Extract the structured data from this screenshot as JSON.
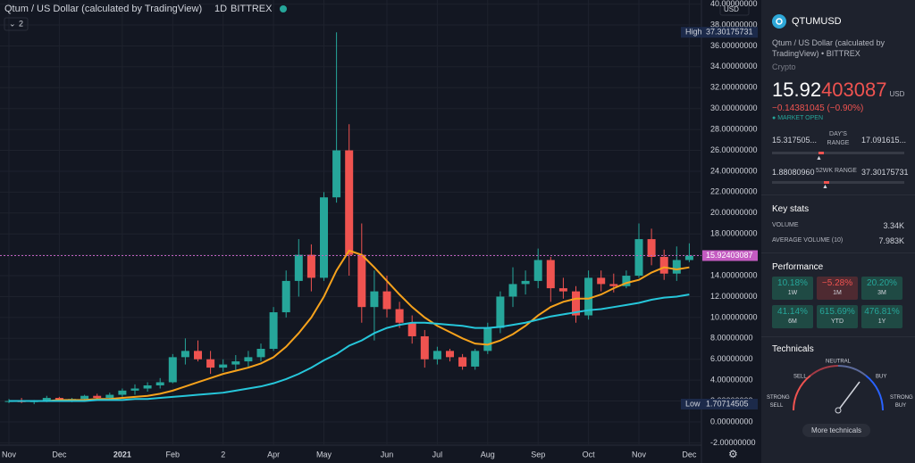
{
  "header": {
    "title": "Qtum / US Dollar (calculated by TradingView)",
    "interval": "1D",
    "exchange": "BITTREX",
    "indicators": "2",
    "currency": "USD"
  },
  "chart_data": {
    "type": "candlestick",
    "categories": [
      "Nov",
      null,
      null,
      null,
      "Dec",
      null,
      null,
      null,
      null,
      "2021",
      null,
      null,
      null,
      "Feb",
      null,
      null,
      null,
      "2",
      null,
      null,
      null,
      "Apr",
      null,
      null,
      null,
      "May",
      null,
      null,
      null,
      null,
      "Jun",
      null,
      null,
      null,
      "Jul",
      null,
      null,
      null,
      "Aug",
      null,
      null,
      null,
      "Sep",
      null,
      null,
      null,
      "Oct",
      null,
      null,
      null,
      "Nov",
      null,
      null,
      null,
      "Dec"
    ],
    "ohlc": [
      [
        2.0,
        2.2,
        1.8,
        2.0
      ],
      [
        2.0,
        2.3,
        1.8,
        1.9
      ],
      [
        1.9,
        2.1,
        1.7,
        2.0
      ],
      [
        2.0,
        2.5,
        1.9,
        2.3
      ],
      [
        2.3,
        2.4,
        2.0,
        2.1
      ],
      [
        2.1,
        2.3,
        1.9,
        2.2
      ],
      [
        2.2,
        2.6,
        2.1,
        2.5
      ],
      [
        2.5,
        2.7,
        2.2,
        2.3
      ],
      [
        2.3,
        2.8,
        2.2,
        2.6
      ],
      [
        2.6,
        3.2,
        2.4,
        3.0
      ],
      [
        3.0,
        3.6,
        2.6,
        3.2
      ],
      [
        3.2,
        3.8,
        2.9,
        3.5
      ],
      [
        3.5,
        4.2,
        3.2,
        3.8
      ],
      [
        3.8,
        6.5,
        3.7,
        6.2
      ],
      [
        6.2,
        8.0,
        5.5,
        6.8
      ],
      [
        6.8,
        7.8,
        5.8,
        6.0
      ],
      [
        6.0,
        6.8,
        4.6,
        5.2
      ],
      [
        5.2,
        6.0,
        4.8,
        5.5
      ],
      [
        5.5,
        6.4,
        5.0,
        5.8
      ],
      [
        5.8,
        6.8,
        5.3,
        6.2
      ],
      [
        6.2,
        7.5,
        5.8,
        7.0
      ],
      [
        7.0,
        11.0,
        6.8,
        10.5
      ],
      [
        10.5,
        14.5,
        10.0,
        13.5
      ],
      [
        13.5,
        17.5,
        12.0,
        16.0
      ],
      [
        16.0,
        17.0,
        12.5,
        13.8
      ],
      [
        13.8,
        22.0,
        13.5,
        21.5
      ],
      [
        21.5,
        37.3,
        21.0,
        26.0
      ],
      [
        26.0,
        28.5,
        14.0,
        16.0
      ],
      [
        16.0,
        19.0,
        9.5,
        11.0
      ],
      [
        11.0,
        14.5,
        7.8,
        12.5
      ],
      [
        12.5,
        14.0,
        10.0,
        10.8
      ],
      [
        10.8,
        11.5,
        9.0,
        9.5
      ],
      [
        9.5,
        10.2,
        7.5,
        8.2
      ],
      [
        8.2,
        8.8,
        5.2,
        6.0
      ],
      [
        6.0,
        7.2,
        5.5,
        6.8
      ],
      [
        6.8,
        7.0,
        5.8,
        6.2
      ],
      [
        6.2,
        6.5,
        5.0,
        5.3
      ],
      [
        5.3,
        7.0,
        5.0,
        6.8
      ],
      [
        6.8,
        9.5,
        6.5,
        9.0
      ],
      [
        9.0,
        12.5,
        8.5,
        12.0
      ],
      [
        12.0,
        14.8,
        11.0,
        13.2
      ],
      [
        13.2,
        14.5,
        12.2,
        13.5
      ],
      [
        13.5,
        16.6,
        12.8,
        15.5
      ],
      [
        15.5,
        15.8,
        11.5,
        12.8
      ],
      [
        12.8,
        13.8,
        11.8,
        12.5
      ],
      [
        12.5,
        13.0,
        9.5,
        10.2
      ],
      [
        10.2,
        14.5,
        9.8,
        13.8
      ],
      [
        13.8,
        14.5,
        12.5,
        13.2
      ],
      [
        13.2,
        14.2,
        12.4,
        13.0
      ],
      [
        13.0,
        14.5,
        12.8,
        14.0
      ],
      [
        14.0,
        19.0,
        13.8,
        17.5
      ],
      [
        17.5,
        18.5,
        15.0,
        15.8
      ],
      [
        15.8,
        16.5,
        13.6,
        14.2
      ],
      [
        14.2,
        16.8,
        13.5,
        15.5
      ],
      [
        15.5,
        17.1,
        15.3,
        15.92403087
      ]
    ],
    "up_color": "#26a69a",
    "down_color": "#ef5350",
    "lines": [
      {
        "color": "#f6a21c",
        "values": [
          2.0,
          2.0,
          2.0,
          2.0,
          2.1,
          2.1,
          2.1,
          2.2,
          2.2,
          2.3,
          2.4,
          2.5,
          2.7,
          3.0,
          3.4,
          3.8,
          4.2,
          4.6,
          4.9,
          5.2,
          5.6,
          6.2,
          7.2,
          8.5,
          10.0,
          12.0,
          14.5,
          16.4,
          16.0,
          14.8,
          13.5,
          12.2,
          11.0,
          10.0,
          9.2,
          8.6,
          8.0,
          7.5,
          7.4,
          7.8,
          8.4,
          9.2,
          10.2,
          11.0,
          11.5,
          11.8,
          11.8,
          12.2,
          12.8,
          13.3,
          13.6,
          14.3,
          14.8,
          14.6,
          14.8
        ]
      },
      {
        "color": "#26c6da",
        "values": [
          2.0,
          2.0,
          2.0,
          2.0,
          2.0,
          2.0,
          2.0,
          2.1,
          2.1,
          2.1,
          2.2,
          2.2,
          2.3,
          2.4,
          2.5,
          2.6,
          2.7,
          2.8,
          3.0,
          3.2,
          3.4,
          3.7,
          4.1,
          4.6,
          5.2,
          5.9,
          6.5,
          7.3,
          7.8,
          8.5,
          9.0,
          9.3,
          9.5,
          9.5,
          9.4,
          9.3,
          9.2,
          9.0,
          9.0,
          9.1,
          9.3,
          9.5,
          9.8,
          10.1,
          10.3,
          10.5,
          10.7,
          10.8,
          11.0,
          11.2,
          11.4,
          11.7,
          11.9,
          12.0,
          12.2
        ]
      }
    ],
    "ylim": [
      -2,
      40
    ],
    "yticks": [
      {
        "value": -2,
        "label": "-2.00000000"
      },
      {
        "value": 0,
        "label": "0.00000000"
      },
      {
        "value": 2,
        "label": "2.00000000"
      },
      {
        "value": 4,
        "label": "4.00000000"
      },
      {
        "value": 6,
        "label": "6.00000000"
      },
      {
        "value": 8,
        "label": "8.00000000"
      },
      {
        "value": 10,
        "label": "10.00000000"
      },
      {
        "value": 12,
        "label": "12.00000000"
      },
      {
        "value": 14,
        "label": "14.00000000"
      },
      {
        "value": 16,
        "label": "16.00000000"
      },
      {
        "value": 18,
        "label": "18.00000000"
      },
      {
        "value": 20,
        "label": "20.00000000"
      },
      {
        "value": 22,
        "label": "22.00000000"
      },
      {
        "value": 24,
        "label": "24.00000000"
      },
      {
        "value": 26,
        "label": "26.00000000"
      },
      {
        "value": 28,
        "label": "28.00000000"
      },
      {
        "value": 30,
        "label": "30.00000000"
      },
      {
        "value": 32,
        "label": "32.00000000"
      },
      {
        "value": 34,
        "label": "34.00000000"
      },
      {
        "value": 36,
        "label": "36.00000000"
      },
      {
        "value": 38,
        "label": "38.00000000"
      },
      {
        "value": 40,
        "label": "40.00000000"
      }
    ],
    "markers": [
      {
        "name": "High",
        "value": 37.30175731,
        "label": "37.30175731"
      },
      {
        "name": "Low",
        "value": 1.70714505,
        "label": "1.70714505"
      }
    ],
    "last_price": {
      "value": 15.92403087,
      "label": "15.92403087"
    },
    "grid": true
  },
  "sidebar": {
    "symbol": "QTUMUSD",
    "description": "Qtum / US Dollar (calculated by TradingView)",
    "exchange": "• BITTREX",
    "category": "Crypto",
    "price_main": "15.92",
    "price_tail": "403087",
    "price_currency": "USD",
    "change": "−0.14381045 (−0.90%)",
    "status": "MARKET OPEN",
    "day_range": {
      "low": "15.317505...",
      "label": "DAY'S RANGE",
      "high": "17.091615..."
    },
    "week52_range": {
      "low": "1.88080960",
      "label": "52WK RANGE",
      "high": "37.30175731"
    },
    "key_stats": {
      "title": "Key stats",
      "rows": [
        [
          "VOLUME",
          "3.34K"
        ],
        [
          "AVERAGE VOLUME (10)",
          "7.983K"
        ]
      ]
    },
    "performance": {
      "title": "Performance",
      "cells": [
        [
          "10.18%",
          "1W"
        ],
        [
          "−5.28%",
          "1M"
        ],
        [
          "20.20%",
          "3M"
        ],
        [
          "41.14%",
          "6M"
        ],
        [
          "615.69%",
          "YTD"
        ],
        [
          "476.81%",
          "1Y"
        ]
      ]
    },
    "technicals": {
      "title": "Technicals",
      "sell": "SELL",
      "neutral": "NEUTRAL",
      "buy": "BUY",
      "strong_sell": "STRONG SELL",
      "strong_buy": "STRONG BUY",
      "button": "More technicals"
    }
  }
}
